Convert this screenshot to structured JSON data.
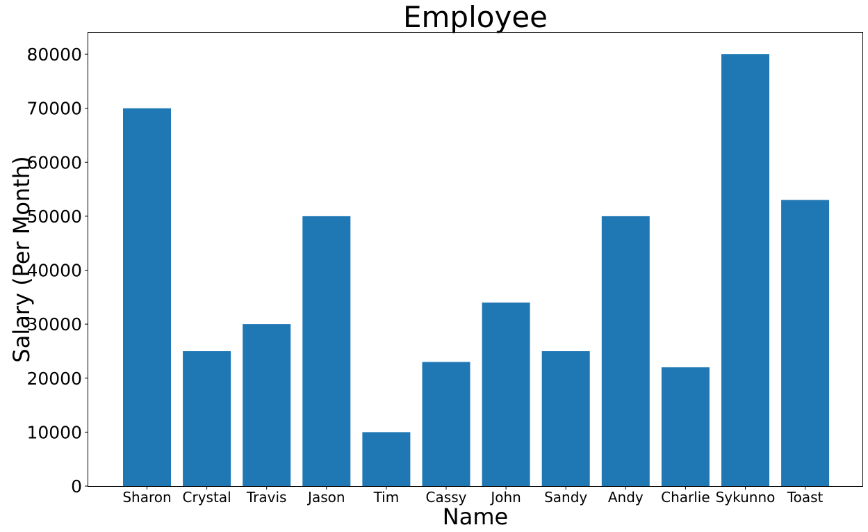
{
  "chart_data": {
    "type": "bar",
    "title": "Employee",
    "xlabel": "Name",
    "ylabel": "Salary (Per Month)",
    "categories": [
      "Sharon",
      "Crystal",
      "Travis",
      "Jason",
      "Tim",
      "Cassy",
      "John",
      "Sandy",
      "Andy",
      "Charlie",
      "Sykunno",
      "Toast"
    ],
    "values": [
      70000,
      25000,
      30000,
      50000,
      10000,
      23000,
      34000,
      25000,
      50000,
      22000,
      80000,
      53000
    ],
    "yticks": [
      0,
      10000,
      20000,
      30000,
      40000,
      50000,
      60000,
      70000,
      80000
    ],
    "ylim": [
      0,
      84000
    ],
    "bar_color": "#1f77b4",
    "grid": false,
    "legend": "none"
  }
}
